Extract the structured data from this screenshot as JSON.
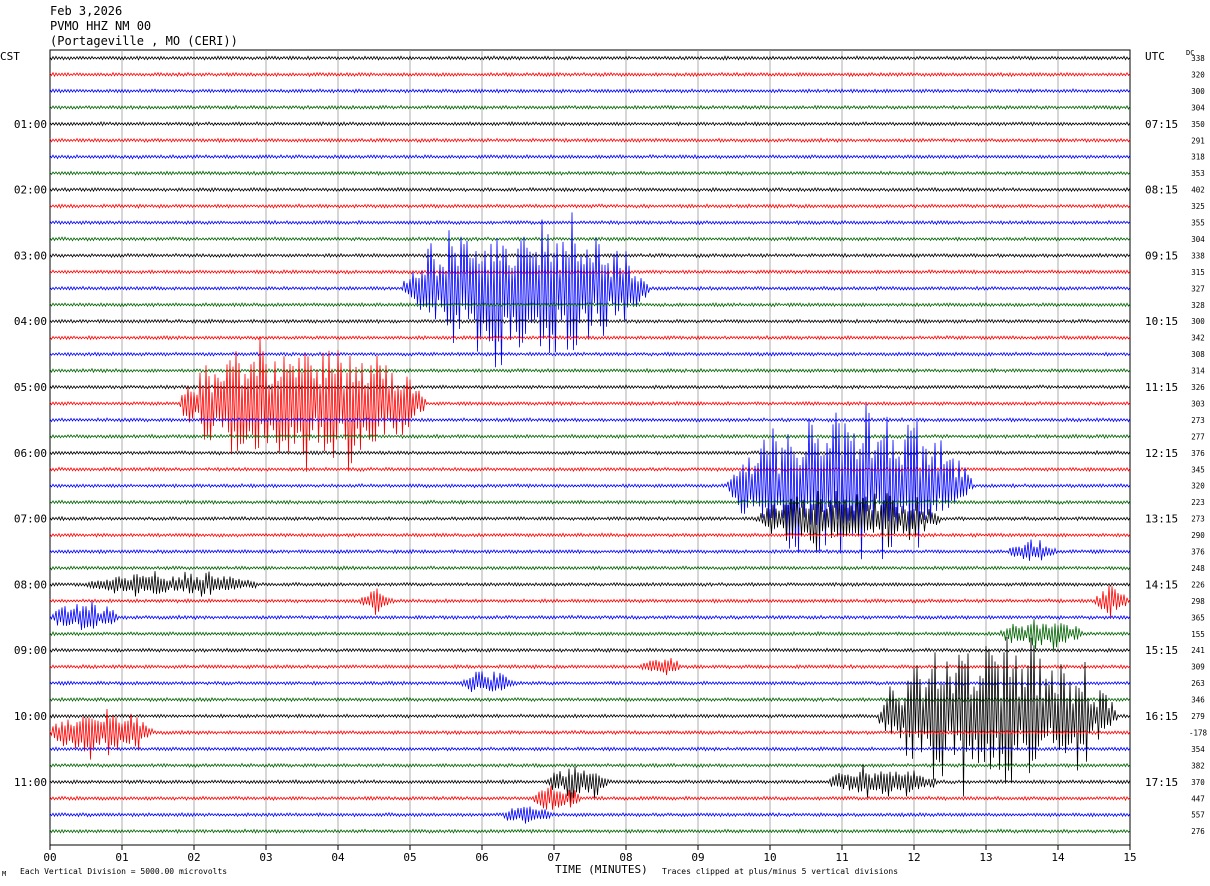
{
  "header": {
    "date": "Feb 3,2026",
    "station": "PVMO HHZ NM 00",
    "location": "(Portageville , MO (CERI))"
  },
  "timezones": {
    "left": "CST",
    "right": "UTC"
  },
  "dc_label": "DC",
  "corner_mark": "M",
  "footer": {
    "scale_note": "Each Vertical Division = 5000.00 microvolts",
    "xlabel": "TIME (MINUTES)",
    "clip_note": "Traces clipped at plus/minus 5 vertical divisions"
  },
  "colors": {
    "trace_cycle": [
      "#000000",
      "#ff0000",
      "#0000ff",
      "#006400"
    ],
    "grid": "#999999"
  },
  "chart_data": {
    "type": "line",
    "title": "",
    "xlabel": "TIME (MINUTES)",
    "xlim": [
      0,
      15
    ],
    "x_ticks": [
      "00",
      "01",
      "02",
      "03",
      "04",
      "05",
      "06",
      "07",
      "08",
      "09",
      "10",
      "11",
      "12",
      "13",
      "14",
      "15"
    ],
    "left_hour_labels": [
      "01:00",
      "02:00",
      "03:00",
      "04:00",
      "05:00",
      "06:00",
      "07:00",
      "08:00",
      "09:00",
      "10:00",
      "11:00"
    ],
    "right_hour_labels": [
      "07:15",
      "08:15",
      "09:15",
      "10:15",
      "11:15",
      "12:15",
      "13:15",
      "14:15",
      "15:15",
      "16:15",
      "17:15"
    ],
    "trace_count": 48,
    "dc_offsets": [
      338,
      320,
      300,
      304,
      350,
      291,
      318,
      353,
      402,
      325,
      355,
      304,
      338,
      315,
      327,
      328,
      300,
      342,
      308,
      314,
      326,
      303,
      273,
      277,
      376,
      345,
      320,
      223,
      273,
      290,
      376,
      248,
      226,
      298,
      365,
      155,
      241,
      309,
      263,
      346,
      279,
      -178,
      354,
      382,
      370,
      447,
      557,
      276
    ],
    "events": [
      {
        "trace": 14,
        "start_min": 4.9,
        "end_min": 8.5,
        "peak_amp_divisions": 5
      },
      {
        "trace": 21,
        "start_min": 1.8,
        "end_min": 5.4,
        "peak_amp_divisions": 5
      },
      {
        "trace": 26,
        "start_min": 9.4,
        "end_min": 13.0,
        "peak_amp_divisions": 5
      },
      {
        "trace": 28,
        "start_min": 9.8,
        "end_min": 12.5,
        "peak_amp_divisions": 2
      },
      {
        "trace": 40,
        "start_min": 11.5,
        "end_min": 15.0,
        "peak_amp_divisions": 5
      },
      {
        "trace": 41,
        "start_min": 0.0,
        "end_min": 1.5,
        "peak_amp_divisions": 1.6
      },
      {
        "trace": 44,
        "start_min": 6.9,
        "end_min": 7.8,
        "peak_amp_divisions": 1.2
      },
      {
        "trace": 44,
        "start_min": 10.8,
        "end_min": 12.4,
        "peak_amp_divisions": 1.0
      },
      {
        "trace": 45,
        "start_min": 6.7,
        "end_min": 7.4,
        "peak_amp_divisions": 1.0
      },
      {
        "trace": 46,
        "start_min": 6.3,
        "end_min": 7.0,
        "peak_amp_divisions": 0.8
      },
      {
        "trace": 34,
        "start_min": 0.0,
        "end_min": 1.0,
        "peak_amp_divisions": 1.0
      },
      {
        "trace": 35,
        "start_min": 13.2,
        "end_min": 14.4,
        "peak_amp_divisions": 1.0
      },
      {
        "trace": 32,
        "start_min": 0.5,
        "end_min": 3.0,
        "peak_amp_divisions": 0.8
      },
      {
        "trace": 30,
        "start_min": 13.3,
        "end_min": 14.0,
        "peak_amp_divisions": 0.7
      },
      {
        "trace": 38,
        "start_min": 5.7,
        "end_min": 6.5,
        "peak_amp_divisions": 0.8
      },
      {
        "trace": 37,
        "start_min": 8.2,
        "end_min": 8.8,
        "peak_amp_divisions": 0.6
      },
      {
        "trace": 33,
        "start_min": 14.5,
        "end_min": 15.0,
        "peak_amp_divisions": 1.0
      },
      {
        "trace": 33,
        "start_min": 4.3,
        "end_min": 4.8,
        "peak_amp_divisions": 0.7
      }
    ]
  }
}
